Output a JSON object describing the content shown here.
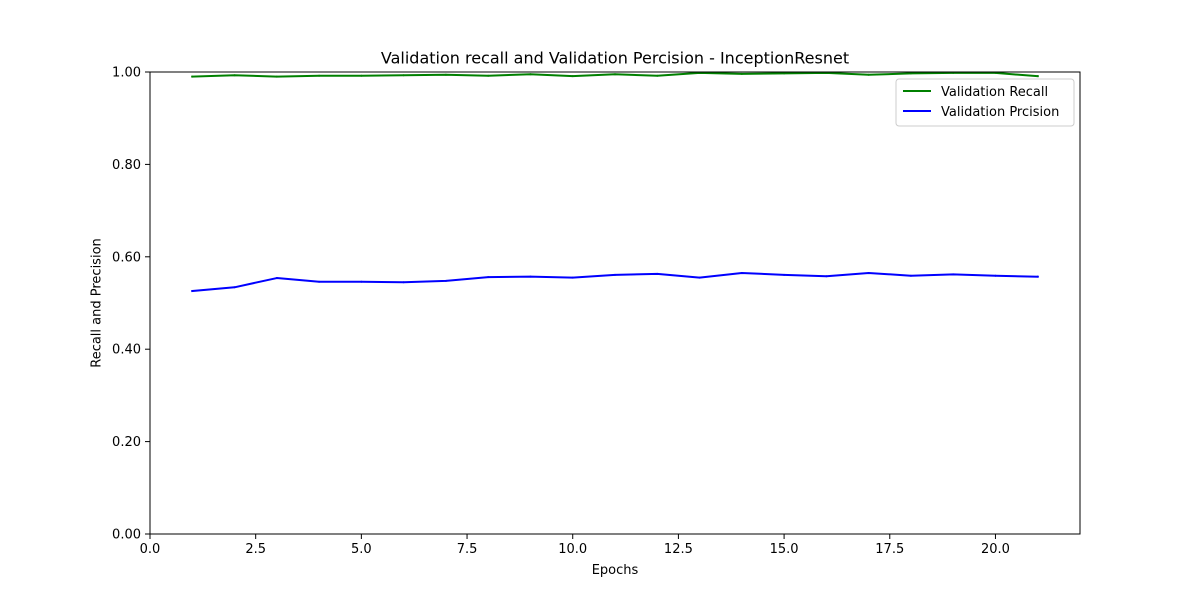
{
  "chart_data": {
    "type": "line",
    "title": "Validation recall and Validation Percision - InceptionResnet",
    "xlabel": "Epochs",
    "ylabel": "Recall and Precision",
    "xlim": [
      0.0,
      22.0
    ],
    "ylim": [
      0.0,
      1.0
    ],
    "xticks": [
      0.0,
      2.5,
      5.0,
      7.5,
      10.0,
      12.5,
      15.0,
      17.5,
      20.0
    ],
    "xtick_labels": [
      "0.0",
      "2.5",
      "5.0",
      "7.5",
      "10.0",
      "12.5",
      "15.0",
      "17.5",
      "20.0"
    ],
    "yticks": [
      0.0,
      0.2,
      0.4,
      0.6,
      0.8,
      1.0
    ],
    "ytick_labels": [
      "0.00",
      "0.20",
      "0.40",
      "0.60",
      "0.80",
      "1.00"
    ],
    "grid": false,
    "legend_position": "top-right",
    "x": [
      1,
      2,
      3,
      4,
      5,
      6,
      7,
      8,
      9,
      10,
      11,
      12,
      13,
      14,
      15,
      16,
      17,
      18,
      19,
      20,
      21
    ],
    "series": [
      {
        "name": "Validation Recall",
        "color": "#008000",
        "values": [
          0.99,
          0.993,
          0.99,
          0.992,
          0.992,
          0.993,
          0.994,
          0.992,
          0.995,
          0.991,
          0.995,
          0.992,
          0.998,
          0.996,
          0.997,
          0.998,
          0.994,
          0.997,
          0.998,
          0.998,
          0.991
        ]
      },
      {
        "name": "Validation Prcision",
        "color": "#0000ff",
        "values": [
          0.526,
          0.534,
          0.554,
          0.546,
          0.546,
          0.545,
          0.548,
          0.556,
          0.557,
          0.555,
          0.561,
          0.563,
          0.555,
          0.565,
          0.561,
          0.558,
          0.565,
          0.559,
          0.562,
          0.559,
          0.557
        ]
      }
    ]
  }
}
